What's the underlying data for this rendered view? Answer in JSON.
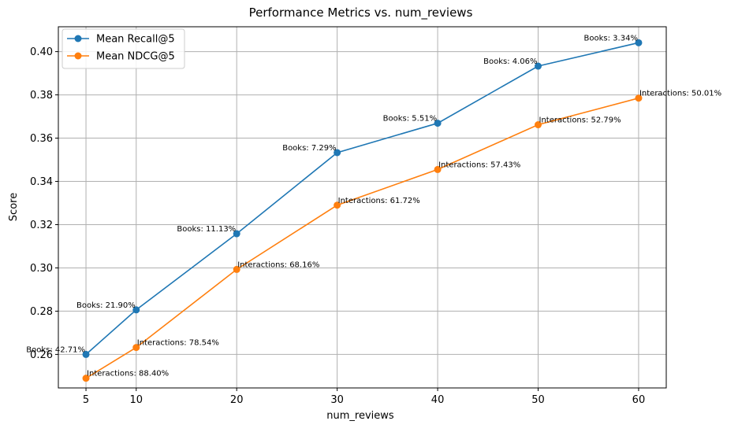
{
  "chart_data": {
    "type": "line",
    "title": "Performance Metrics vs. num_reviews",
    "xlabel": "num_reviews",
    "ylabel": "Score",
    "x": [
      5,
      10,
      20,
      30,
      40,
      50,
      60
    ],
    "x_ticks": [
      "5",
      "10",
      "20",
      "30",
      "40",
      "50",
      "60"
    ],
    "y_ticks": [
      "0.26",
      "0.28",
      "0.30",
      "0.32",
      "0.34",
      "0.36",
      "0.38",
      "0.40"
    ],
    "xlim": [
      2.25,
      62.75
    ],
    "ylim": [
      0.2445,
      0.4115
    ],
    "grid": true,
    "legend_position": "top-left",
    "series": [
      {
        "name": "Mean Recall@5",
        "color": "#1f77b4",
        "values": [
          0.26,
          0.2806,
          0.3158,
          0.3533,
          0.3669,
          0.3933,
          0.4041
        ],
        "annotations": [
          "Books: 42.71%",
          "Books: 21.90%",
          "Books: 11.13%",
          "Books: 7.29%",
          "Books: 5.51%",
          "Books: 4.06%",
          "Books: 3.34%"
        ]
      },
      {
        "name": "Mean NDCG@5",
        "color": "#ff7f0e",
        "values": [
          0.249,
          0.2632,
          0.2993,
          0.329,
          0.3455,
          0.3662,
          0.3785
        ],
        "annotations": [
          "Interactions: 88.40%",
          "Interactions: 78.54%",
          "Interactions: 68.16%",
          "Interactions: 61.72%",
          "Interactions: 57.43%",
          "Interactions: 52.79%",
          "Interactions: 50.01%"
        ]
      }
    ]
  }
}
